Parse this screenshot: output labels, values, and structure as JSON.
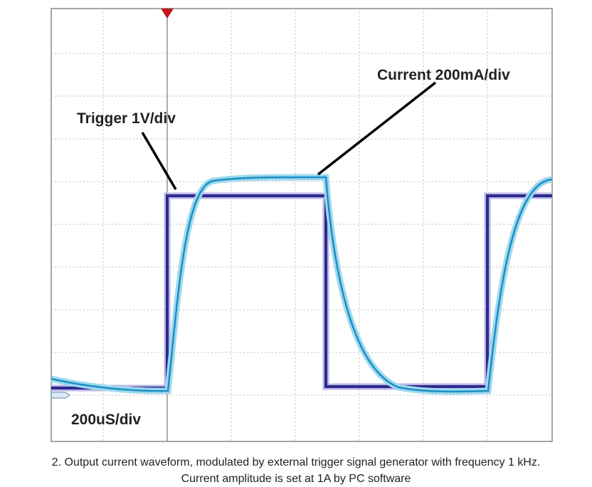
{
  "annotations": {
    "current": "Current 200mA/div",
    "trigger": "Trigger 1V/div",
    "timebase": "200uS/div"
  },
  "caption": {
    "line1": "2. Output current waveform, modulated by external trigger signal generator with frequency 1 kHz.",
    "line2": "Current amplitude is set at 1A by PC software"
  }
}
